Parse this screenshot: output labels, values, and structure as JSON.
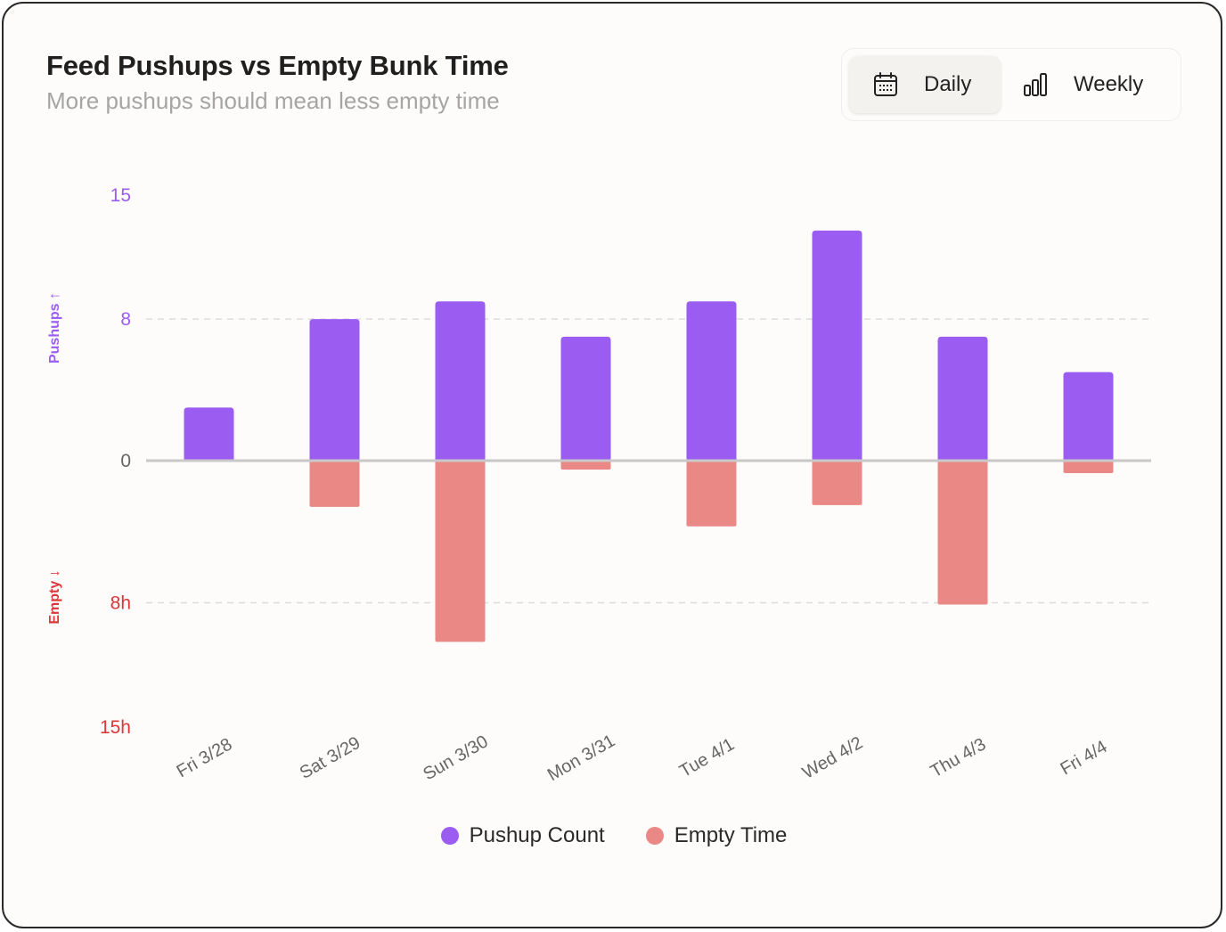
{
  "header": {
    "title": "Feed Pushups vs Empty Bunk Time",
    "subtitle": "More pushups should mean less empty time"
  },
  "toggle": {
    "selected": "daily",
    "options": [
      {
        "key": "daily",
        "label": "Daily",
        "icon": "calendar-icon"
      },
      {
        "key": "weekly",
        "label": "Weekly",
        "icon": "bar-chart-icon"
      }
    ]
  },
  "colors": {
    "pushups": "#9b5cf2",
    "empty": "#ea8886",
    "pushups_text": "#9b5cf2",
    "empty_text": "#d9373a",
    "axis_text": "#666666",
    "zero_line": "#c8c8c8",
    "grid": "#dcdcdc"
  },
  "chart_data": {
    "type": "bar",
    "layout": "diverging",
    "categories": [
      "Fri 3/28",
      "Sat 3/29",
      "Sun 3/30",
      "Mon 3/31",
      "Tue 4/1",
      "Wed 4/2",
      "Thu 4/3",
      "Fri 4/4"
    ],
    "series": [
      {
        "name": "Pushup Count",
        "direction": "up",
        "values": [
          3,
          8,
          9,
          7,
          9,
          13,
          7,
          5
        ]
      },
      {
        "name": "Empty Time",
        "direction": "down",
        "unit": "h",
        "values": [
          0,
          2.6,
          10.2,
          0.5,
          3.7,
          2.5,
          8.1,
          0.7
        ]
      }
    ],
    "upper_axis": {
      "label": "Pushups ↑",
      "ticks": [
        15,
        8,
        0
      ],
      "tick_labels": [
        "15",
        "8",
        "0"
      ],
      "max": 15
    },
    "lower_axis": {
      "label": "Empty ↓",
      "ticks": [
        8,
        15
      ],
      "tick_labels": [
        "8h",
        "15h"
      ],
      "max": 15
    },
    "grid": true,
    "legend_position": "bottom-center"
  }
}
